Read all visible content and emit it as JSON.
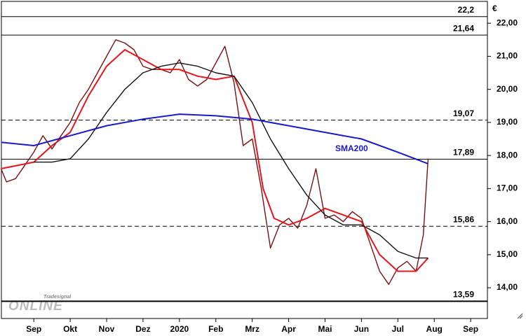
{
  "chart_data": {
    "type": "line",
    "currency": "€",
    "annotation": "SMA200",
    "logo": {
      "top": "Tradesignal",
      "bottom": "ONLINE"
    },
    "xlim": [
      -0.89,
      12.46
    ],
    "xticks": [
      {
        "value": 0,
        "label": "Sep"
      },
      {
        "value": 1,
        "label": "Okt"
      },
      {
        "value": 2,
        "label": "Nov"
      },
      {
        "value": 3,
        "label": "Dez"
      },
      {
        "value": 4,
        "label": "2020"
      },
      {
        "value": 5,
        "label": "Feb"
      },
      {
        "value": 6,
        "label": "Mrz"
      },
      {
        "value": 7,
        "label": "Apr"
      },
      {
        "value": 8,
        "label": "Mai"
      },
      {
        "value": 9,
        "label": "Jun"
      },
      {
        "value": 10,
        "label": "Jul"
      },
      {
        "value": 11,
        "label": "Aug"
      },
      {
        "value": 12,
        "label": "Sep"
      }
    ],
    "ylim": [
      13.07,
      22.66
    ],
    "yticks": [
      {
        "value": 14,
        "label": "14,00"
      },
      {
        "value": 15,
        "label": "15,00"
      },
      {
        "value": 16,
        "label": "16,00"
      },
      {
        "value": 17,
        "label": "17,00"
      },
      {
        "value": 18,
        "label": "18,00"
      },
      {
        "value": 19,
        "label": "19,00"
      },
      {
        "value": 20,
        "label": "20,00"
      },
      {
        "value": 21,
        "label": "21,00"
      },
      {
        "value": 22,
        "label": "22,00"
      }
    ],
    "levels": [
      {
        "value": 22.2,
        "label": "22,2",
        "style": "solid"
      },
      {
        "value": 21.64,
        "label": "21,64",
        "style": "solid"
      },
      {
        "value": 19.07,
        "label": "19,07",
        "style": "dashed"
      },
      {
        "value": 17.89,
        "label": "17,89",
        "style": "solid"
      },
      {
        "value": 15.86,
        "label": "15,86",
        "style": "dashed"
      },
      {
        "value": 13.59,
        "label": "13,59",
        "style": "thick"
      }
    ],
    "series": [
      {
        "color": "#7a1010",
        "width": 1.4,
        "x": [
          -0.9,
          -0.75,
          -0.5,
          -0.25,
          0,
          0.25,
          0.5,
          0.75,
          1,
          1.25,
          1.5,
          1.75,
          2,
          2.25,
          2.5,
          2.75,
          3,
          3.25,
          3.5,
          3.75,
          4,
          4.25,
          4.5,
          4.75,
          5,
          5.25,
          5.5,
          5.75,
          6,
          6.25,
          6.5,
          6.75,
          7,
          7.25,
          7.5,
          7.75,
          8,
          8.25,
          8.5,
          8.75,
          9,
          9.25,
          9.5,
          9.75,
          10,
          10.25,
          10.5,
          10.7,
          10.83
        ],
        "values": [
          17.6,
          17.2,
          17.3,
          17.7,
          18.1,
          18.6,
          18.2,
          18.6,
          19.0,
          19.6,
          20.0,
          20.5,
          21.0,
          21.5,
          21.4,
          21.2,
          20.7,
          20.6,
          20.6,
          20.5,
          20.9,
          20.3,
          20.1,
          20.3,
          20.8,
          21.3,
          20.2,
          18.3,
          18.5,
          17.0,
          15.2,
          15.9,
          16.1,
          15.8,
          16.5,
          17.6,
          16.1,
          16.2,
          16.0,
          16.3,
          16.1,
          15.3,
          14.5,
          14.1,
          14.6,
          14.8,
          14.5,
          15.6,
          17.9
        ]
      },
      {
        "color": "#e8141c",
        "width": 2,
        "x": [
          -0.9,
          0,
          0.5,
          1,
          1.5,
          2,
          2.5,
          3,
          3.5,
          4,
          4.5,
          5,
          5.5,
          6,
          6.3,
          6.6,
          7,
          7.5,
          8,
          8.5,
          9,
          9.5,
          10,
          10.5,
          10.83
        ],
        "values": [
          17.6,
          17.8,
          18.3,
          18.7,
          19.8,
          20.7,
          21.2,
          20.9,
          20.6,
          20.6,
          20.4,
          20.3,
          20.4,
          19.0,
          17.0,
          16.1,
          15.9,
          16.1,
          16.4,
          16.2,
          16.0,
          15.0,
          14.5,
          14.5,
          14.9
        ]
      },
      {
        "color": "#111111",
        "width": 1.4,
        "x": [
          0,
          0.5,
          1,
          1.5,
          2,
          2.5,
          3,
          3.5,
          4,
          4.5,
          5,
          5.5,
          6,
          6.5,
          7,
          7.5,
          8,
          8.5,
          9,
          9.5,
          10,
          10.5,
          10.83
        ],
        "values": [
          17.8,
          17.8,
          17.9,
          18.5,
          19.3,
          20.0,
          20.5,
          20.7,
          20.8,
          20.7,
          20.5,
          20.4,
          19.6,
          18.5,
          17.6,
          16.8,
          16.2,
          15.9,
          15.9,
          15.6,
          15.1,
          14.9,
          14.9
        ]
      },
      {
        "name": "SMA200",
        "color": "#1a1acc",
        "width": 2,
        "x": [
          -0.9,
          0,
          1,
          2,
          3,
          4,
          5,
          6,
          7,
          8,
          9,
          10,
          10.83
        ],
        "values": [
          18.4,
          18.3,
          18.6,
          18.9,
          19.1,
          19.25,
          19.2,
          19.1,
          18.9,
          18.7,
          18.5,
          18.1,
          17.75
        ]
      }
    ]
  }
}
